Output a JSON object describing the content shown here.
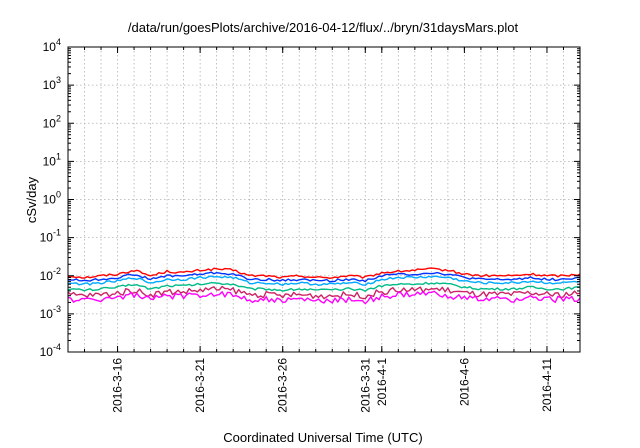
{
  "chart_data": {
    "type": "line",
    "title": "/data/run/goesPlots/archive/2016-04-12/flux/../bryn/31daysMars.plot",
    "xlabel": "Coordinated Universal Time (UTC)",
    "ylabel": "cSv/day",
    "yscale": "log",
    "ylim": [
      0.0001,
      10000
    ],
    "y_ticks": [
      {
        "base": "10",
        "exp": "-4",
        "value": 0.0001
      },
      {
        "base": "10",
        "exp": "-3",
        "value": 0.001
      },
      {
        "base": "10",
        "exp": "-2",
        "value": 0.01
      },
      {
        "base": "10",
        "exp": "-1",
        "value": 0.1
      },
      {
        "base": "10",
        "exp": "0",
        "value": 1
      },
      {
        "base": "10",
        "exp": "1",
        "value": 10
      },
      {
        "base": "10",
        "exp": "2",
        "value": 100
      },
      {
        "base": "10",
        "exp": "3",
        "value": 1000
      },
      {
        "base": "10",
        "exp": "4",
        "value": 10000
      }
    ],
    "xlim": [
      "2016-03-13",
      "2016-04-13"
    ],
    "x_ticks": [
      {
        "label": "2016-3-16",
        "date": "2016-03-16"
      },
      {
        "label": "2016-3-21",
        "date": "2016-03-21"
      },
      {
        "label": "2016-3-26",
        "date": "2016-03-26"
      },
      {
        "label": "2016-3-31",
        "date": "2016-03-31"
      },
      {
        "label": "2016-4-1",
        "date": "2016-04-01"
      },
      {
        "label": "2016-4-6",
        "date": "2016-04-06"
      },
      {
        "label": "2016-4-11",
        "date": "2016-04-11"
      }
    ],
    "grid": true,
    "x": [
      "2016-03-13",
      "2016-03-14",
      "2016-03-15",
      "2016-03-16",
      "2016-03-17",
      "2016-03-18",
      "2016-03-19",
      "2016-03-20",
      "2016-03-21",
      "2016-03-22",
      "2016-03-23",
      "2016-03-24",
      "2016-03-25",
      "2016-03-26",
      "2016-03-27",
      "2016-03-28",
      "2016-03-29",
      "2016-03-30",
      "2016-03-31",
      "2016-04-01",
      "2016-04-02",
      "2016-04-03",
      "2016-04-04",
      "2016-04-05",
      "2016-04-06",
      "2016-04-07",
      "2016-04-08",
      "2016-04-09",
      "2016-04-10",
      "2016-04-11",
      "2016-04-12",
      "2016-04-13"
    ],
    "series": [
      {
        "color": "#ff0000",
        "values": [
          0.01,
          0.009,
          0.01,
          0.011,
          0.014,
          0.01,
          0.013,
          0.012,
          0.014,
          0.015,
          0.014,
          0.01,
          0.01,
          0.009,
          0.01,
          0.009,
          0.009,
          0.01,
          0.009,
          0.012,
          0.013,
          0.014,
          0.015,
          0.014,
          0.011,
          0.01,
          0.01,
          0.01,
          0.011,
          0.01,
          0.01,
          0.011
        ]
      },
      {
        "color": "#0033ff",
        "values": [
          0.008,
          0.0075,
          0.008,
          0.009,
          0.011,
          0.008,
          0.01,
          0.01,
          0.011,
          0.012,
          0.011,
          0.008,
          0.008,
          0.0075,
          0.008,
          0.0075,
          0.0075,
          0.008,
          0.0075,
          0.01,
          0.011,
          0.011,
          0.012,
          0.011,
          0.009,
          0.008,
          0.008,
          0.008,
          0.009,
          0.008,
          0.008,
          0.009
        ]
      },
      {
        "color": "#00aaff",
        "values": [
          0.0065,
          0.006,
          0.0065,
          0.0072,
          0.009,
          0.0065,
          0.008,
          0.008,
          0.009,
          0.0095,
          0.009,
          0.0065,
          0.0065,
          0.006,
          0.0065,
          0.006,
          0.006,
          0.0065,
          0.006,
          0.008,
          0.009,
          0.009,
          0.0095,
          0.009,
          0.0072,
          0.0065,
          0.0065,
          0.0065,
          0.0072,
          0.0065,
          0.0065,
          0.0072
        ]
      },
      {
        "color": "#00bb88",
        "values": [
          0.0045,
          0.0042,
          0.0045,
          0.005,
          0.006,
          0.0045,
          0.0055,
          0.0055,
          0.006,
          0.0065,
          0.006,
          0.0045,
          0.0045,
          0.0042,
          0.0045,
          0.0042,
          0.0042,
          0.0045,
          0.0042,
          0.0055,
          0.006,
          0.006,
          0.0065,
          0.006,
          0.005,
          0.0045,
          0.0045,
          0.0045,
          0.005,
          0.0045,
          0.0045,
          0.005
        ]
      },
      {
        "color": "#cc2266",
        "values": [
          0.0032,
          0.003,
          0.0032,
          0.0035,
          0.0042,
          0.0032,
          0.0038,
          0.0038,
          0.0042,
          0.0045,
          0.0042,
          0.0032,
          0.0032,
          0.003,
          0.0032,
          0.003,
          0.003,
          0.0032,
          0.003,
          0.0038,
          0.0042,
          0.0042,
          0.0045,
          0.0042,
          0.0035,
          0.0032,
          0.0032,
          0.0032,
          0.0035,
          0.0032,
          0.0032,
          0.0035
        ]
      },
      {
        "color": "#ff00ff",
        "values": [
          0.0025,
          0.0022,
          0.0025,
          0.0027,
          0.0032,
          0.0024,
          0.003,
          0.0028,
          0.0032,
          0.0034,
          0.0031,
          0.0024,
          0.0024,
          0.0022,
          0.0024,
          0.0022,
          0.0022,
          0.0024,
          0.0022,
          0.0028,
          0.0031,
          0.0032,
          0.0034,
          0.0031,
          0.0026,
          0.0024,
          0.0024,
          0.0024,
          0.0026,
          0.0024,
          0.0024,
          0.0026
        ]
      }
    ]
  }
}
